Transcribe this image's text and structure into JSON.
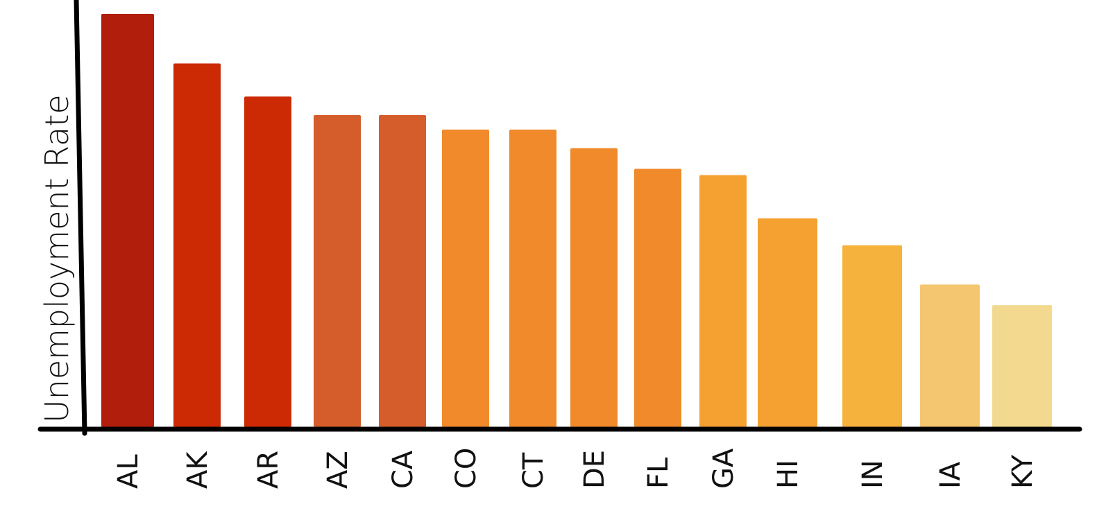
{
  "chart_data": {
    "type": "bar",
    "ylabel": "Unemployment Rate",
    "xlabel": "",
    "categories": [
      "AL",
      "AK",
      "AR",
      "AZ",
      "CA",
      "CO",
      "CT",
      "DE",
      "FL",
      "GA",
      "HI",
      "IN",
      "IA",
      "KY"
    ],
    "values": [
      100,
      88,
      80,
      75.5,
      75.5,
      72,
      72,
      67.5,
      62.5,
      61,
      50.5,
      44,
      34.5,
      29.5
    ],
    "colors": [
      "#b11f0c",
      "#cc2a04",
      "#cc2a04",
      "#d45d2b",
      "#d45d2b",
      "#f08a2b",
      "#f08a2b",
      "#f08a2b",
      "#f08a2b",
      "#f4a132",
      "#f4a132",
      "#f5b23d",
      "#f5c670",
      "#f2d98f"
    ],
    "ylim": [
      0,
      100
    ],
    "grid": false,
    "legend": "none"
  }
}
